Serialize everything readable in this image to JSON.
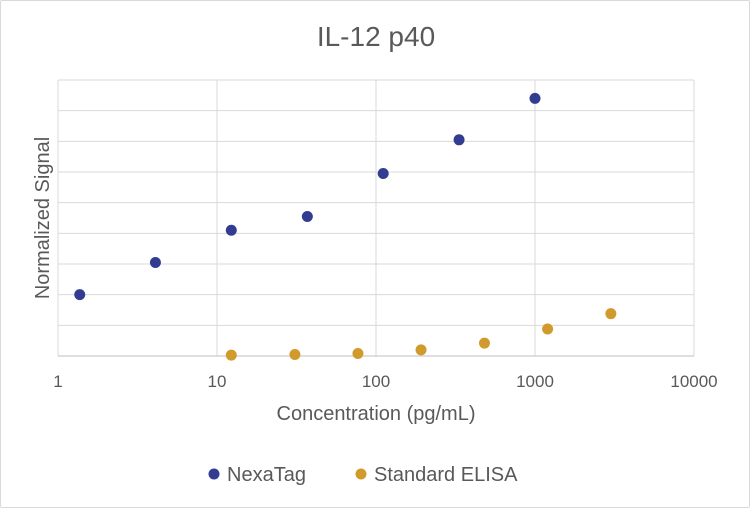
{
  "chart_data": {
    "type": "scatter",
    "title": "IL-12 p40",
    "xlabel": "Concentration (pg/mL)",
    "ylabel": "Normalized Signal",
    "x_scale": "log",
    "xlim": [
      1,
      10000
    ],
    "ylim": [
      0,
      9
    ],
    "x_tick_labels": [
      "1",
      "10",
      "100",
      "1000",
      "10000"
    ],
    "y_tick_labels_shown": false,
    "grid": true,
    "legend_position": "bottom",
    "series": [
      {
        "name": "NexaTag",
        "color": "#323d91",
        "points": [
          {
            "x": 1.37,
            "y": 2.0
          },
          {
            "x": 4.1,
            "y": 3.05
          },
          {
            "x": 12.3,
            "y": 4.1
          },
          {
            "x": 37,
            "y": 4.55
          },
          {
            "x": 111,
            "y": 5.95
          },
          {
            "x": 333,
            "y": 7.05
          },
          {
            "x": 1000,
            "y": 8.4
          }
        ]
      },
      {
        "name": "Standard ELISA",
        "color": "#d09a2c",
        "points": [
          {
            "x": 12.3,
            "y": 0.03
          },
          {
            "x": 30.9,
            "y": 0.05
          },
          {
            "x": 77,
            "y": 0.08
          },
          {
            "x": 192,
            "y": 0.2
          },
          {
            "x": 481,
            "y": 0.42
          },
          {
            "x": 1200,
            "y": 0.88
          },
          {
            "x": 3000,
            "y": 1.38
          }
        ]
      }
    ]
  }
}
